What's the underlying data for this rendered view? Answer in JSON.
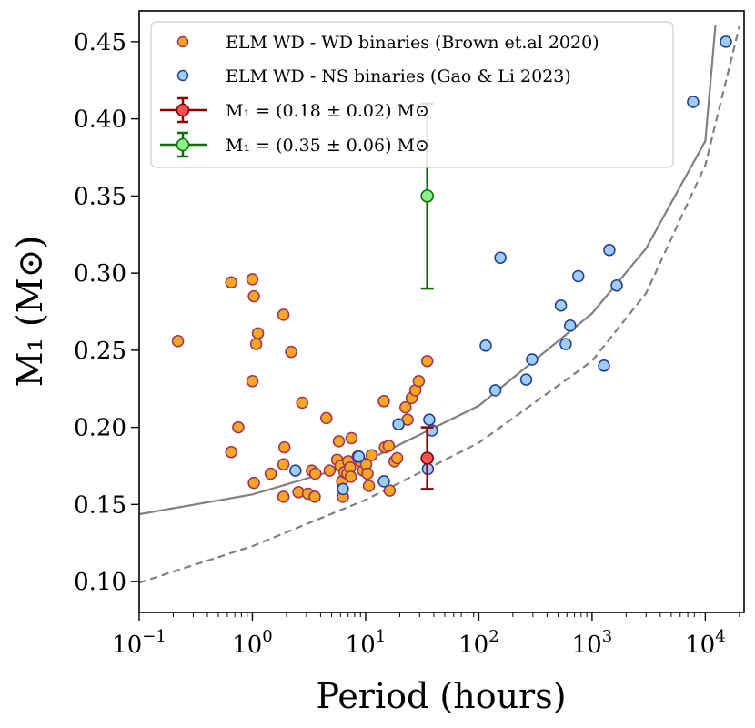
{
  "chart_data": {
    "type": "scatter",
    "xscale": "log",
    "xlabel": "Period (hours)",
    "ylabel": "M₁ (M⊙)",
    "xlim": [
      0.1,
      22000
    ],
    "ylim": [
      0.08,
      0.47
    ],
    "x_ticks": [
      {
        "value": 0.1,
        "base": "10",
        "exp": "−1"
      },
      {
        "value": 1,
        "base": "10",
        "exp": "0"
      },
      {
        "value": 10,
        "base": "10",
        "exp": "1"
      },
      {
        "value": 100,
        "base": "10",
        "exp": "2"
      },
      {
        "value": 1000,
        "base": "10",
        "exp": "3"
      },
      {
        "value": 10000,
        "base": "10",
        "exp": "4"
      }
    ],
    "y_ticks": [
      {
        "value": 0.1,
        "label": "0.10"
      },
      {
        "value": 0.15,
        "label": "0.15"
      },
      {
        "value": 0.2,
        "label": "0.20"
      },
      {
        "value": 0.25,
        "label": "0.25"
      },
      {
        "value": 0.3,
        "label": "0.30"
      },
      {
        "value": 0.35,
        "label": "0.35"
      },
      {
        "value": 0.4,
        "label": "0.40"
      },
      {
        "value": 0.45,
        "label": "0.45"
      }
    ],
    "grid": false,
    "legend_position": "top-left",
    "series": [
      {
        "name": "ELM WD - WD binaries (Brown et.al 2020)",
        "kind": "scatter",
        "fill": "#F5A623",
        "edge": "#A0305A",
        "points": [
          [
            0.22,
            0.256
          ],
          [
            0.65,
            0.294
          ],
          [
            0.65,
            0.184
          ],
          [
            0.75,
            0.2
          ],
          [
            1.0,
            0.296
          ],
          [
            1.03,
            0.285
          ],
          [
            1.0,
            0.23
          ],
          [
            1.08,
            0.254
          ],
          [
            1.12,
            0.261
          ],
          [
            1.03,
            0.164
          ],
          [
            1.88,
            0.273
          ],
          [
            2.2,
            0.249
          ],
          [
            1.92,
            0.187
          ],
          [
            1.88,
            0.176
          ],
          [
            1.88,
            0.155
          ],
          [
            1.45,
            0.17
          ],
          [
            2.75,
            0.216
          ],
          [
            2.55,
            0.158
          ],
          [
            3.1,
            0.157
          ],
          [
            3.35,
            0.172
          ],
          [
            3.55,
            0.155
          ],
          [
            3.6,
            0.17
          ],
          [
            4.5,
            0.206
          ],
          [
            4.8,
            0.172
          ],
          [
            5.8,
            0.191
          ],
          [
            5.6,
            0.179
          ],
          [
            6.0,
            0.175
          ],
          [
            6.2,
            0.165
          ],
          [
            6.3,
            0.155
          ],
          [
            6.5,
            0.171
          ],
          [
            6.9,
            0.17
          ],
          [
            7.0,
            0.178
          ],
          [
            7.3,
            0.174
          ],
          [
            7.4,
            0.168
          ],
          [
            7.5,
            0.193
          ],
          [
            8.5,
            0.181
          ],
          [
            9.0,
            0.178
          ],
          [
            9.5,
            0.172
          ],
          [
            10.1,
            0.176
          ],
          [
            10.4,
            0.17
          ],
          [
            10.7,
            0.162
          ],
          [
            11.3,
            0.182
          ],
          [
            14.5,
            0.217
          ],
          [
            14.8,
            0.187
          ],
          [
            16.0,
            0.188
          ],
          [
            16.3,
            0.159
          ],
          [
            18.0,
            0.178
          ],
          [
            19.0,
            0.18
          ],
          [
            22.5,
            0.213
          ],
          [
            23.5,
            0.205
          ],
          [
            25.5,
            0.219
          ],
          [
            27.5,
            0.224
          ],
          [
            29.5,
            0.23
          ],
          [
            35.0,
            0.243
          ]
        ]
      },
      {
        "name": "ELM WD - NS binaries (Gao & Li 2023)",
        "kind": "scatter",
        "fill": "#9DCDF5",
        "edge": "#1F3A8F",
        "points": [
          [
            2.4,
            0.172
          ],
          [
            6.3,
            0.16
          ],
          [
            8.7,
            0.181
          ],
          [
            14.5,
            0.165
          ],
          [
            19.5,
            0.202
          ],
          [
            35.5,
            0.173
          ],
          [
            36.5,
            0.205
          ],
          [
            38.5,
            0.198
          ],
          [
            115,
            0.253
          ],
          [
            140,
            0.224
          ],
          [
            155,
            0.31
          ],
          [
            262,
            0.231
          ],
          [
            295,
            0.244
          ],
          [
            530,
            0.279
          ],
          [
            585,
            0.254
          ],
          [
            640,
            0.266
          ],
          [
            755,
            0.298
          ],
          [
            1275,
            0.24
          ],
          [
            1420,
            0.315
          ],
          [
            1650,
            0.292
          ],
          [
            7800,
            0.411
          ],
          [
            15200,
            0.45
          ]
        ]
      },
      {
        "name": "M₁ = (0.18 ± 0.02) M⊙",
        "kind": "errorbar",
        "fill": "#F05454",
        "edge": "#8B0000",
        "points": [
          [
            35.0,
            0.18,
            0.02
          ]
        ]
      },
      {
        "name": "M₁ = (0.35 ± 0.06) M⊙",
        "kind": "errorbar",
        "fill": "#8CF08C",
        "edge": "#0A6E0A",
        "points": [
          [
            35.0,
            0.35,
            0.06
          ]
        ]
      }
    ],
    "curves": [
      {
        "name": "solid relation",
        "style": "solid",
        "color": "#808080",
        "points": [
          [
            0.1,
            0.1437
          ],
          [
            1,
            0.1565
          ],
          [
            10,
            0.1781
          ],
          [
            100,
            0.214
          ],
          [
            1000,
            0.2739
          ],
          [
            3000,
            0.316
          ],
          [
            10000,
            0.3856
          ],
          [
            12300,
            0.4609
          ]
        ]
      },
      {
        "name": "dashed relation",
        "style": "dashed",
        "color": "#808080",
        "points": [
          [
            0.1,
            0.0993
          ],
          [
            1,
            0.123
          ],
          [
            10,
            0.153
          ],
          [
            100,
            0.19
          ],
          [
            1000,
            0.243
          ],
          [
            3000,
            0.287
          ],
          [
            10000,
            0.37
          ],
          [
            20000,
            0.46
          ]
        ]
      }
    ]
  }
}
